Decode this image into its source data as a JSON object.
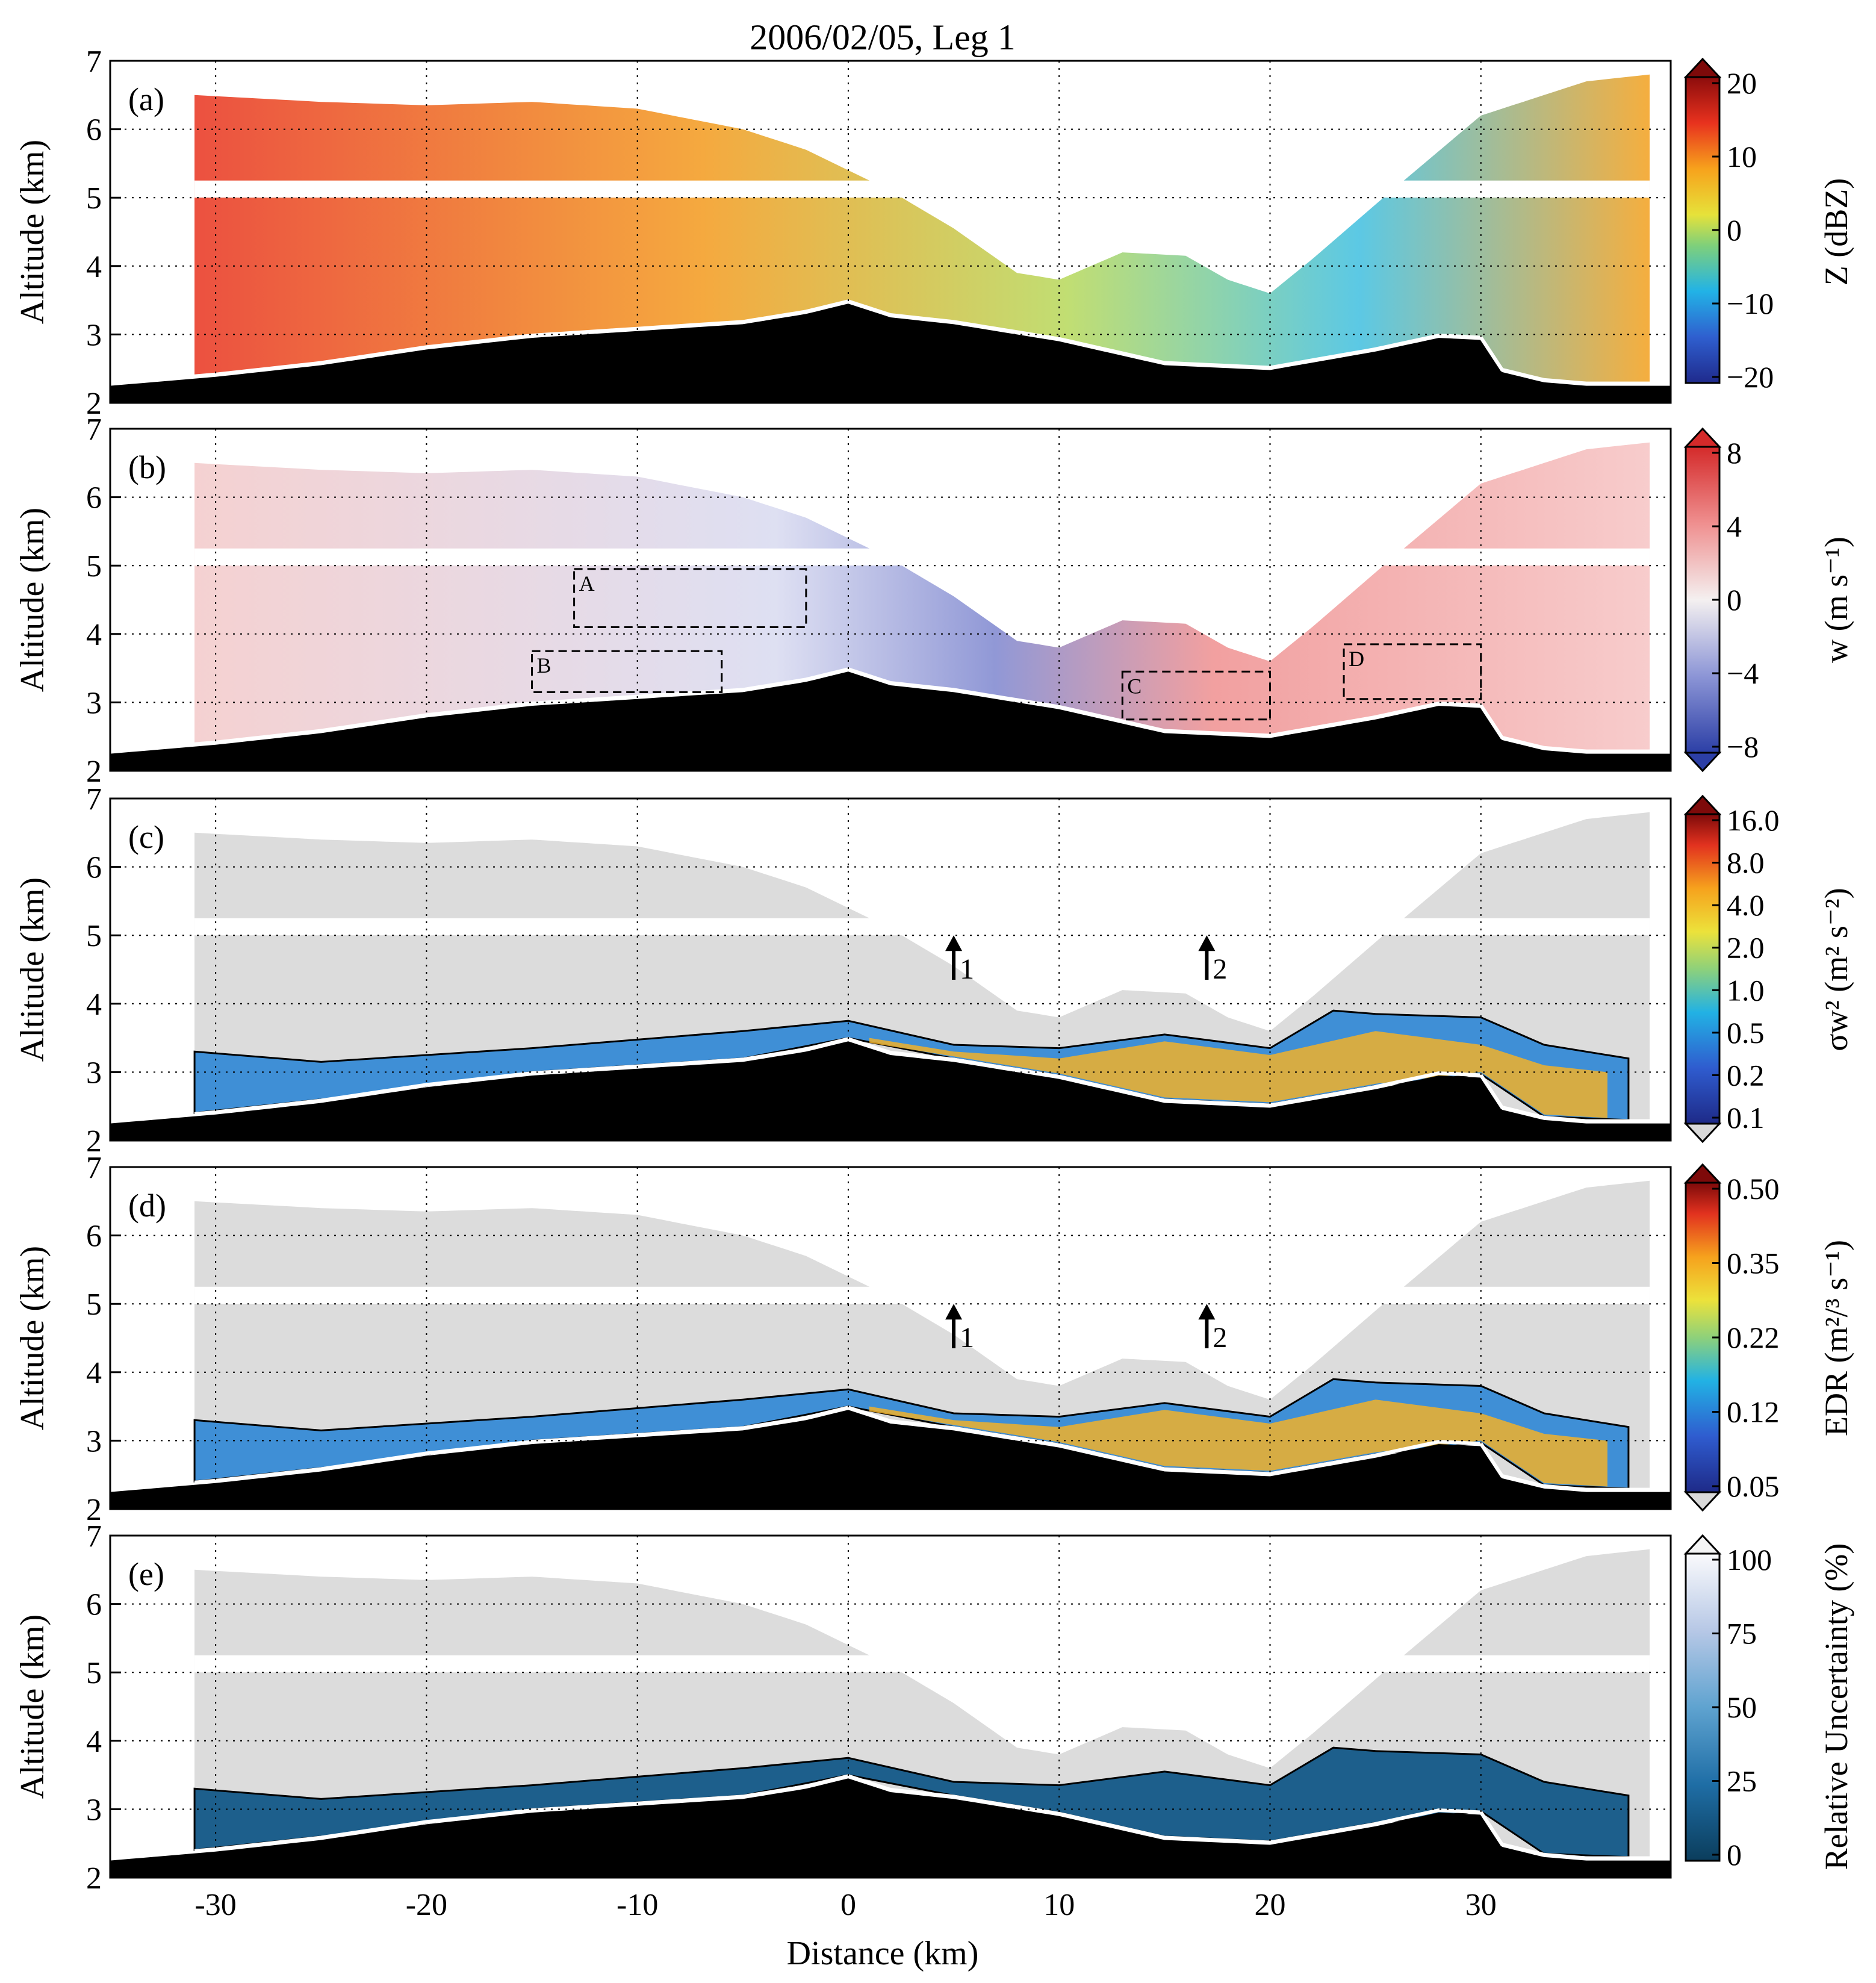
{
  "title": "2006/02/05, Leg 1",
  "xlabel": "Distance (km)",
  "ylabel": "Altitude (km)",
  "xticks": [
    "-30",
    "-20",
    "-10",
    "0",
    "10",
    "20",
    "30"
  ],
  "yticks": [
    "2",
    "3",
    "4",
    "5",
    "6",
    "7"
  ],
  "panels": [
    {
      "label": "(a)",
      "field": "Z",
      "cbar_label": "Z (dBZ)",
      "cbar_ticks": [
        "20",
        "10",
        "0",
        "−10",
        "−20"
      ]
    },
    {
      "label": "(b)",
      "field": "w",
      "cbar_label": "w (m s⁻¹)",
      "cbar_ticks": [
        "8",
        "4",
        "0",
        "−4",
        "−8"
      ],
      "boxes": [
        {
          "label": "A"
        },
        {
          "label": "B"
        },
        {
          "label": "C"
        },
        {
          "label": "D"
        }
      ]
    },
    {
      "label": "(c)",
      "field": "sigma_w2",
      "cbar_label": "σw² (m² s⁻²)",
      "cbar_ticks": [
        "16.0",
        "8.0",
        "4.0",
        "2.0",
        "1.0",
        "0.5",
        "0.2",
        "0.1"
      ],
      "arrows": [
        {
          "label": "1"
        },
        {
          "label": "2"
        }
      ]
    },
    {
      "label": "(d)",
      "field": "EDR",
      "cbar_label": "EDR (m²/³ s⁻¹)",
      "cbar_ticks": [
        "0.50",
        "0.35",
        "0.22",
        "0.12",
        "0.05"
      ],
      "arrows": [
        {
          "label": "1"
        },
        {
          "label": "2"
        }
      ]
    },
    {
      "label": "(e)",
      "field": "uncertainty",
      "cbar_label": "Relative Uncertainty (%)",
      "cbar_ticks": [
        "100",
        "75",
        "50",
        "25",
        "0"
      ]
    }
  ],
  "chart_data": {
    "type": "heatmap",
    "title": "2006/02/05, Leg 1",
    "xlabel": "Distance (km)",
    "ylabel": "Altitude (km)",
    "xlim": [
      -35,
      39
    ],
    "ylim": [
      2,
      7
    ],
    "grid": true,
    "terrain_profile": {
      "x": [
        -35,
        -30,
        -25,
        -20,
        -15,
        -10,
        -5,
        -2,
        0,
        2,
        5,
        10,
        15,
        20,
        25,
        28,
        30,
        31,
        33,
        35,
        39
      ],
      "altitude": [
        2.25,
        2.38,
        2.55,
        2.78,
        2.95,
        3.05,
        3.15,
        3.3,
        3.45,
        3.25,
        3.15,
        2.9,
        2.55,
        2.48,
        2.75,
        2.95,
        2.92,
        2.45,
        2.3,
        2.25,
        2.25
      ]
    },
    "cloud_top": {
      "x": [
        -31,
        -25,
        -20,
        -15,
        -10,
        -5,
        -2,
        0,
        2,
        5,
        8,
        10,
        13,
        16,
        18,
        20,
        22,
        25,
        30,
        35,
        38
      ],
      "altitude": [
        6.5,
        6.4,
        6.35,
        6.4,
        6.3,
        6.0,
        5.7,
        5.4,
        5.1,
        4.55,
        3.9,
        3.8,
        4.2,
        4.15,
        3.8,
        3.6,
        4.1,
        4.9,
        6.2,
        6.7,
        6.8
      ]
    },
    "radar_gap_altitude_km": [
      5.0,
      5.25
    ],
    "colorbars": [
      {
        "panel": "(a)",
        "label": "Z (dBZ)",
        "range": [
          -20,
          20
        ],
        "ticks": [
          -20,
          -10,
          0,
          10,
          20
        ]
      },
      {
        "panel": "(b)",
        "label": "w (m s⁻¹)",
        "range": [
          -8,
          8
        ],
        "ticks": [
          -8,
          -4,
          0,
          4,
          8
        ]
      },
      {
        "panel": "(c)",
        "label": "σw² (m² s⁻²)",
        "ticks": [
          0.1,
          0.2,
          0.5,
          1.0,
          2.0,
          4.0,
          8.0,
          16.0
        ],
        "scale": "log"
      },
      {
        "panel": "(d)",
        "label": "EDR (m²/³ s⁻¹)",
        "ticks": [
          0.05,
          0.12,
          0.22,
          0.35,
          0.5
        ]
      },
      {
        "panel": "(e)",
        "label": "Relative Uncertainty (%)",
        "range": [
          0,
          100
        ],
        "ticks": [
          0,
          25,
          50,
          75,
          100
        ]
      }
    ],
    "boxes_panel_b": [
      {
        "label": "A",
        "x": [
          -13,
          -2
        ],
        "altitude": [
          4.1,
          4.95
        ]
      },
      {
        "label": "B",
        "x": [
          -15,
          -6
        ],
        "altitude": [
          3.15,
          3.75
        ]
      },
      {
        "label": "C",
        "x": [
          13,
          20
        ],
        "altitude": [
          2.75,
          3.45
        ]
      },
      {
        "label": "D",
        "x": [
          23.5,
          30
        ],
        "altitude": [
          3.05,
          3.85
        ]
      }
    ],
    "arrows_x": [
      5,
      17
    ],
    "arrow_altitude": [
      4.35,
      5.0
    ]
  }
}
